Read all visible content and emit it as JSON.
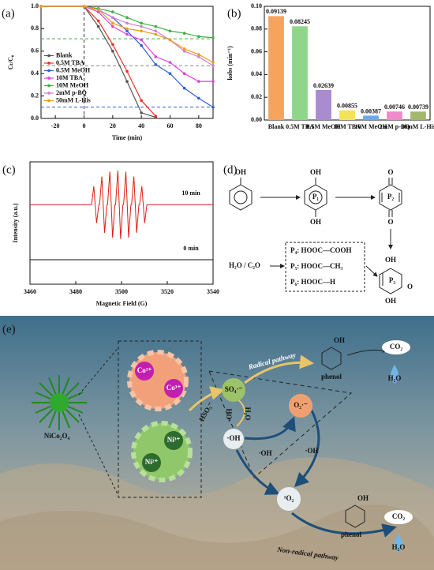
{
  "panel_labels": [
    "(a)",
    "(b)",
    "(c)",
    "(d)",
    "(e)"
  ],
  "chart_data": [
    {
      "type": "line",
      "x_label": "Time (min)",
      "y_label": "Cₜ/C₀",
      "x": [
        -30,
        0,
        10,
        20,
        30,
        40,
        50,
        60,
        70,
        80,
        90
      ],
      "xlim": [
        -30,
        90
      ],
      "xticks": [
        -20,
        0,
        20,
        40,
        60,
        80
      ],
      "ylim": [
        0,
        1.0
      ],
      "yticks": [
        {
          "value": 0,
          "label": "0.0"
        },
        {
          "value": 0.2,
          "label": "0.2"
        },
        {
          "value": 0.4,
          "label": "0.4"
        },
        {
          "value": 0.6,
          "label": "0.6"
        },
        {
          "value": 0.8,
          "label": "0.8"
        },
        {
          "value": 1.0,
          "label": "1.0"
        }
      ],
      "grid": false,
      "legend": "left",
      "markers": true,
      "reference_lines": [
        {
          "axis": "y",
          "value": 0.71,
          "color": "#3cb043"
        },
        {
          "axis": "y",
          "value": 0.47,
          "color": "#888888"
        },
        {
          "axis": "y",
          "value": 0.1,
          "color": "#2f5fd0"
        },
        {
          "axis": "x",
          "value": 0,
          "color": "#333333"
        }
      ],
      "series": [
        {
          "name": "Blank",
          "color": "#555555",
          "values": [
            1,
            1,
            0.82,
            0.6,
            0.33,
            0.05,
            0.01,
            null,
            null,
            null,
            null
          ]
        },
        {
          "name": "0.5M TBA",
          "color": "#e8312b",
          "values": [
            1,
            1,
            0.87,
            0.66,
            0.42,
            0.16,
            0.02,
            null,
            null,
            null,
            null
          ]
        },
        {
          "name": "0.5M MeOH",
          "color": "#2f5fd0",
          "values": [
            1,
            1,
            0.97,
            0.9,
            0.78,
            0.65,
            0.48,
            0.4,
            0.27,
            0.18,
            0.1
          ]
        },
        {
          "name": "10M TBA",
          "color": "#e040e0",
          "values": [
            1,
            1,
            0.95,
            0.82,
            0.75,
            0.7,
            0.55,
            0.5,
            0.4,
            0.33,
            0.33
          ]
        },
        {
          "name": "10M MeOH",
          "color": "#3cb043",
          "values": [
            1,
            1,
            0.98,
            0.95,
            0.9,
            0.85,
            0.82,
            0.78,
            0.76,
            0.73,
            0.72
          ]
        },
        {
          "name": "2mM p-BQ",
          "color": "#d080d0",
          "values": [
            1,
            1,
            0.97,
            0.9,
            0.85,
            0.82,
            0.78,
            0.7,
            0.6,
            0.55,
            0.47
          ]
        },
        {
          "name": "50mM L-His",
          "color": "#f39c12",
          "values": [
            1,
            1,
            0.97,
            0.85,
            0.8,
            0.78,
            0.75,
            0.7,
            0.62,
            0.57,
            0.5
          ]
        }
      ]
    },
    {
      "type": "bar",
      "y_label": "kobs (min⁻¹)",
      "categories": [
        "Blank",
        "0.5M TBA",
        "0.5M MeOH",
        "10M TBA",
        "10M MeOH",
        "2mM p-BQ",
        "50mM L-His"
      ],
      "values": [
        0.09139,
        0.08245,
        0.02639,
        0.00855,
        0.00387,
        0.00746,
        0.00739
      ],
      "colors": [
        "#f7a35c",
        "#8fd68a",
        "#a98bd0",
        "#f2e35a",
        "#6aa8e8",
        "#f08ac8",
        "#a3b86c"
      ],
      "ylim": [
        0,
        0.1
      ],
      "yticks": [
        {
          "value": 0,
          "label": "0.00"
        },
        {
          "value": 0.02,
          "label": "0.02"
        },
        {
          "value": 0.04,
          "label": "0.04"
        },
        {
          "value": 0.06,
          "label": "0.06"
        },
        {
          "value": 0.08,
          "label": "0.08"
        },
        {
          "value": 0.1,
          "label": "0.10"
        }
      ],
      "grid": false
    },
    {
      "type": "line",
      "x_label": "Magnetic Field (G)",
      "y_label": "Intensity (a.u.)",
      "x": [
        3460,
        3486.9,
        3487.9,
        3489.1,
        3490.1,
        3490.4,
        3491.4,
        3492.6,
        3493.6,
        3493.9,
        3494.9,
        3496.1,
        3497.1,
        3497.4,
        3498.4,
        3499.6,
        3500.6,
        3500.9,
        3501.9,
        3503.1,
        3504.1,
        3504.4,
        3505.4,
        3506.6,
        3507.6,
        3507.9,
        3508.9,
        3510.1,
        3511.1,
        3540
      ],
      "xlim": [
        3460,
        3540
      ],
      "xticks": [
        3460,
        3480,
        3500,
        3520,
        3540
      ],
      "ylim": [
        0,
        10
      ],
      "grid": false,
      "markers": false,
      "series": [
        {
          "name": "10 min",
          "color": "#e01b1b",
          "values": [
            6.5,
            6.5,
            8,
            5,
            6.5,
            6.5,
            8.8,
            4.2,
            6.5,
            6.5,
            9.2,
            3.8,
            6.5,
            6.5,
            9.3,
            3.7,
            6.5,
            6.5,
            9.2,
            3.8,
            6.5,
            6.5,
            8.8,
            4.2,
            6.5,
            6.5,
            8,
            5,
            6.5,
            6.5
          ]
        },
        {
          "name": "0 min",
          "color": "#111111",
          "values": [
            2,
            2,
            2,
            2,
            2,
            2,
            2,
            2,
            2,
            2,
            2,
            2,
            2,
            2,
            2,
            2,
            2,
            2,
            2,
            2,
            2,
            2,
            2,
            2,
            2,
            2,
            2,
            2,
            2,
            2
          ]
        }
      ]
    }
  ],
  "scheme": {
    "phenol": {
      "substituent": "OH"
    },
    "p1": {
      "label": "P₁",
      "top": "OH",
      "bottom": "OH"
    },
    "p2": {
      "label": "P₂",
      "top": "O",
      "bottom": "O"
    },
    "p3": {
      "label": "P₃",
      "top": "OH",
      "bottom": "OH",
      "side": "O"
    },
    "reagent": "H₂O / C₂O",
    "products": [
      "P₄:  HOOC—COOH",
      "P₅:  HOOC—CH₃",
      "P₆:  HOOC—H"
    ]
  },
  "illustration": {
    "catalyst": "NiCo₂O₄",
    "co_a": "Co²⁺",
    "co_b": "Co³⁺",
    "ni_a": "Ni³⁺",
    "ni_b": "Ni²⁺",
    "oxidant": "HSO₅⁻",
    "sulfate_radical": "SO₄·⁻",
    "superoxide": "O₂·⁻",
    "hydroxyl": "·OH",
    "ho_label": "HO·",
    "water_label": "H₂O",
    "oh_a": "·OH",
    "oh_b": "·OH",
    "singlet_oxygen": "¹O₂",
    "radical_pathway": "Radical pathway",
    "nonradical_pathway": "Non-radical pathway",
    "phenol_top": {
      "substituent": "OH",
      "name": "phenol"
    },
    "phenol_bottom": {
      "substituent": "OH",
      "name": "phenol"
    },
    "products_top": {
      "co2": "CO₂",
      "h2o": "H₂O"
    },
    "products_bottom": {
      "co2": "CO₂",
      "h2o": "H₂O"
    }
  }
}
